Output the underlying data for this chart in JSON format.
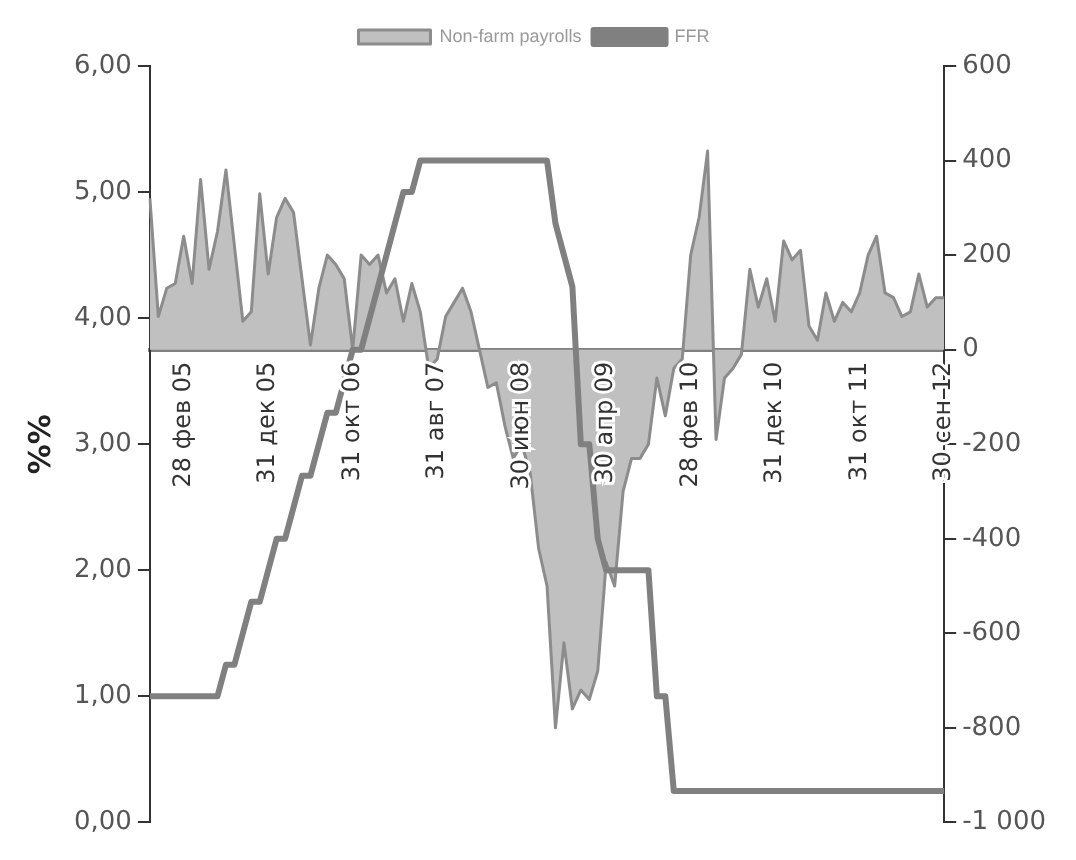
{
  "chart_data": {
    "type": "line",
    "ylabel": "%%",
    "legend": "top",
    "grid": false,
    "categories": [
      null,
      null,
      null,
      null,
      "28 фев 05",
      null,
      null,
      null,
      null,
      null,
      null,
      null,
      null,
      null,
      "31 дек 05",
      null,
      null,
      null,
      null,
      null,
      null,
      null,
      null,
      null,
      "31 окт 06",
      null,
      null,
      null,
      null,
      null,
      null,
      null,
      null,
      null,
      "31 авг 07",
      null,
      null,
      null,
      null,
      null,
      null,
      null,
      null,
      null,
      "30 июн 08",
      null,
      null,
      null,
      null,
      null,
      null,
      null,
      null,
      null,
      "30 апр 09",
      null,
      null,
      null,
      null,
      null,
      null,
      null,
      null,
      null,
      "28 фев 10",
      null,
      null,
      null,
      null,
      null,
      null,
      null,
      null,
      null,
      "31 дек 10",
      null,
      null,
      null,
      null,
      null,
      null,
      null,
      null,
      null,
      "31 окт 11",
      null,
      null,
      null,
      null,
      null,
      null,
      null,
      null,
      null,
      "30 сен 12"
    ],
    "ylim": [
      0,
      6
    ],
    "yticks": [
      {
        "value": 0,
        "label": "0,00"
      },
      {
        "value": 1,
        "label": "1,00"
      },
      {
        "value": 2,
        "label": "2,00"
      },
      {
        "value": 3,
        "label": "3,00"
      },
      {
        "value": 4,
        "label": "4,00"
      },
      {
        "value": 5,
        "label": "5,00"
      },
      {
        "value": 6,
        "label": "6,00"
      }
    ],
    "y2lim": [
      -1000,
      600
    ],
    "y2ticks": [
      {
        "value": -1000,
        "label": "-1 000"
      },
      -800,
      -600,
      -400,
      -200,
      0,
      200,
      400,
      600
    ],
    "series": [
      {
        "name": "Non-farm payrolls",
        "type": "area",
        "axis": "y2",
        "color": "#c0c0c0",
        "values": [
          320,
          70,
          130,
          140,
          240,
          140,
          360,
          170,
          250,
          380,
          220,
          60,
          80,
          330,
          160,
          280,
          320,
          290,
          150,
          10,
          130,
          200,
          180,
          150,
          0,
          200,
          180,
          200,
          120,
          150,
          60,
          140,
          80,
          -40,
          -20,
          70,
          100,
          130,
          80,
          0,
          -80,
          -70,
          -160,
          -230,
          -200,
          -260,
          -420,
          -500,
          -800,
          -620,
          -760,
          -720,
          -740,
          -680,
          -450,
          -500,
          -300,
          -230,
          -230,
          -200,
          -60,
          -140,
          -40,
          -20,
          200,
          280,
          420,
          -190,
          -60,
          -40,
          -10,
          170,
          90,
          150,
          60,
          230,
          190,
          210,
          50,
          20,
          120,
          60,
          100,
          80,
          120,
          200,
          240,
          120,
          110,
          70,
          80,
          160,
          90,
          110,
          110
        ]
      },
      {
        "name": "FFR",
        "type": "line",
        "color": "#808080",
        "values": [
          1,
          1,
          1,
          1,
          1,
          1,
          1,
          1,
          1,
          1.25,
          1.25,
          1.5,
          1.75,
          1.75,
          2,
          2.25,
          2.25,
          2.5,
          2.75,
          2.75,
          3,
          3.25,
          3.25,
          3.5,
          3.75,
          3.75,
          4,
          4.25,
          4.5,
          4.75,
          5,
          5,
          5.25,
          5.25,
          5.25,
          5.25,
          5.25,
          5.25,
          5.25,
          5.25,
          5.25,
          5.25,
          5.25,
          5.25,
          5.25,
          5.25,
          5.25,
          5.25,
          4.75,
          4.5,
          4.25,
          3,
          3,
          2.25,
          2,
          2,
          2,
          2,
          2,
          2,
          1,
          1,
          0.25,
          0.25,
          0.25,
          0.25,
          0.25,
          0.25,
          0.25,
          0.25,
          0.25,
          0.25,
          0.25,
          0.25,
          0.25,
          0.25,
          0.25,
          0.25,
          0.25,
          0.25,
          0.25,
          0.25,
          0.25,
          0.25,
          0.25,
          0.25,
          0.25,
          0.25,
          0.25,
          0.25,
          0.25,
          0.25,
          0.25,
          0.25,
          0.25
        ]
      }
    ]
  }
}
